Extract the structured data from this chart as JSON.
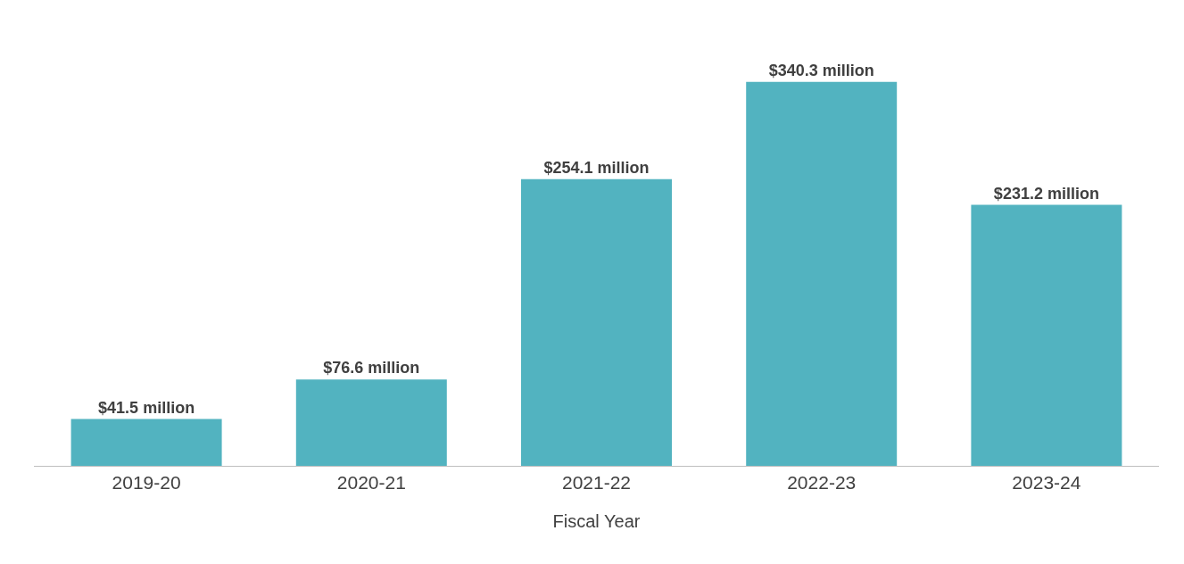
{
  "chart_data": {
    "type": "bar",
    "xlabel": "Fiscal Year",
    "categories": [
      "2019-20",
      "2020-21",
      "2021-22",
      "2022-23",
      "2023-24"
    ],
    "values": [
      41.5,
      76.6,
      254.1,
      340.3,
      231.2
    ],
    "value_labels": [
      "$41.5 million",
      "$76.6 million",
      "$254.1 million",
      "$340.3 million",
      "$231.2 million"
    ],
    "color": "#52b3c0"
  }
}
